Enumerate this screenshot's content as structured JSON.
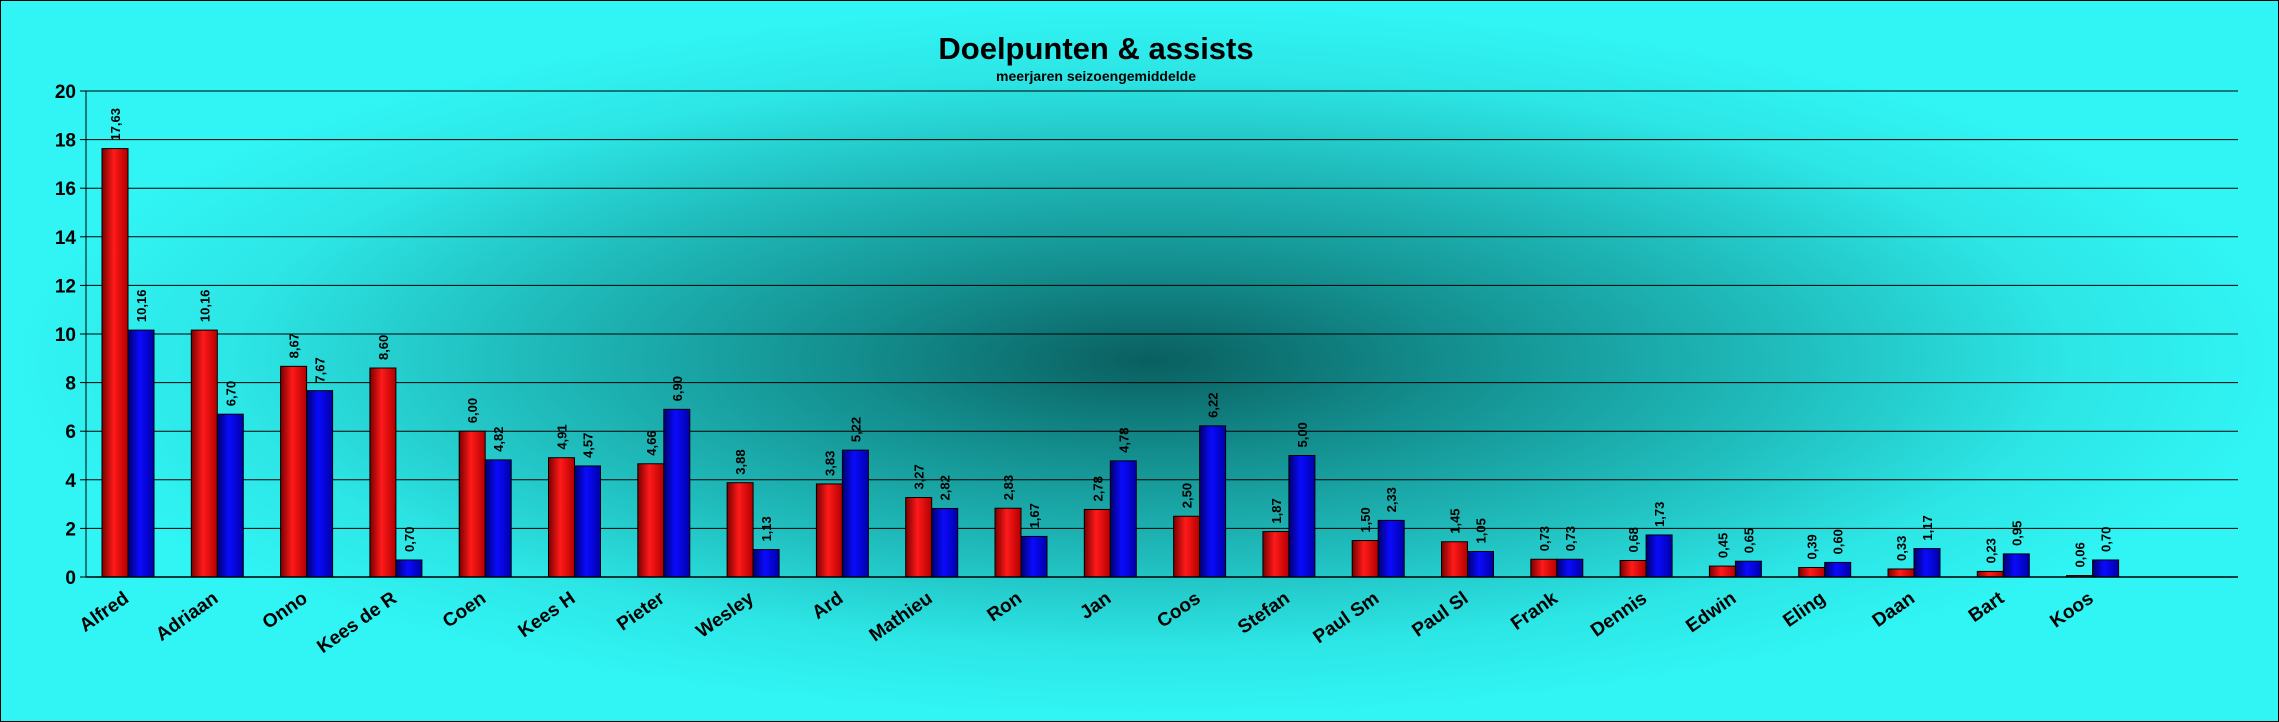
{
  "chart_data": {
    "type": "bar",
    "title": "Doelpunten & assists",
    "subtitle": "meerjaren seizoengemiddelde",
    "categories": [
      "Alfred",
      "Adriaan",
      "Onno",
      "Kees de R",
      "Coen",
      "Kees H",
      "Pieter",
      "Wesley",
      "Ard",
      "Mathieu",
      "Ron",
      "Jan",
      "Coos",
      "Stefan",
      "Paul Sm",
      "Paul Sl",
      "Frank",
      "Dennis",
      "Edwin",
      "Eling",
      "Daan",
      "Bart",
      "Koos"
    ],
    "series": [
      {
        "color": "#e60000",
        "values": [
          17.63,
          10.16,
          8.67,
          8.6,
          6.0,
          4.91,
          4.66,
          3.88,
          3.83,
          3.27,
          2.83,
          2.78,
          2.5,
          1.87,
          1.5,
          1.45,
          0.73,
          0.68,
          0.45,
          0.39,
          0.33,
          0.23,
          0.06
        ],
        "labels": [
          "17,63",
          "10,16",
          "8,67",
          "8,60",
          "6,00",
          "4,91",
          "4,66",
          "3,88",
          "3,83",
          "3,27",
          "2,83",
          "2,78",
          "2,50",
          "1,87",
          "1,50",
          "1,45",
          "0,73",
          "0,68",
          "0,45",
          "0,39",
          "0,33",
          "0,23",
          "0,06"
        ]
      },
      {
        "color": "#0000e6",
        "values": [
          10.16,
          6.7,
          7.67,
          0.7,
          4.82,
          4.57,
          6.9,
          1.13,
          5.22,
          2.82,
          1.67,
          4.78,
          6.22,
          5.0,
          2.33,
          1.05,
          0.73,
          1.73,
          0.65,
          0.6,
          1.17,
          0.95,
          0.7
        ],
        "labels": [
          "10,16",
          "6,70",
          "7,67",
          "0,70",
          "4,82",
          "4,57",
          "6,90",
          "1,13",
          "5,22",
          "2,82",
          "1,67",
          "4,78",
          "6,22",
          "5,00",
          "2,33",
          "1,05",
          "0,73",
          "1,73",
          "0,65",
          "0,60",
          "1,17",
          "0,95",
          "0,70"
        ]
      }
    ],
    "yticks": [
      "0",
      "2",
      "4",
      "6",
      "8",
      "10",
      "12",
      "14",
      "16",
      "18",
      "20"
    ],
    "ylim": [
      0,
      20
    ],
    "grid": true,
    "legend": "none"
  }
}
